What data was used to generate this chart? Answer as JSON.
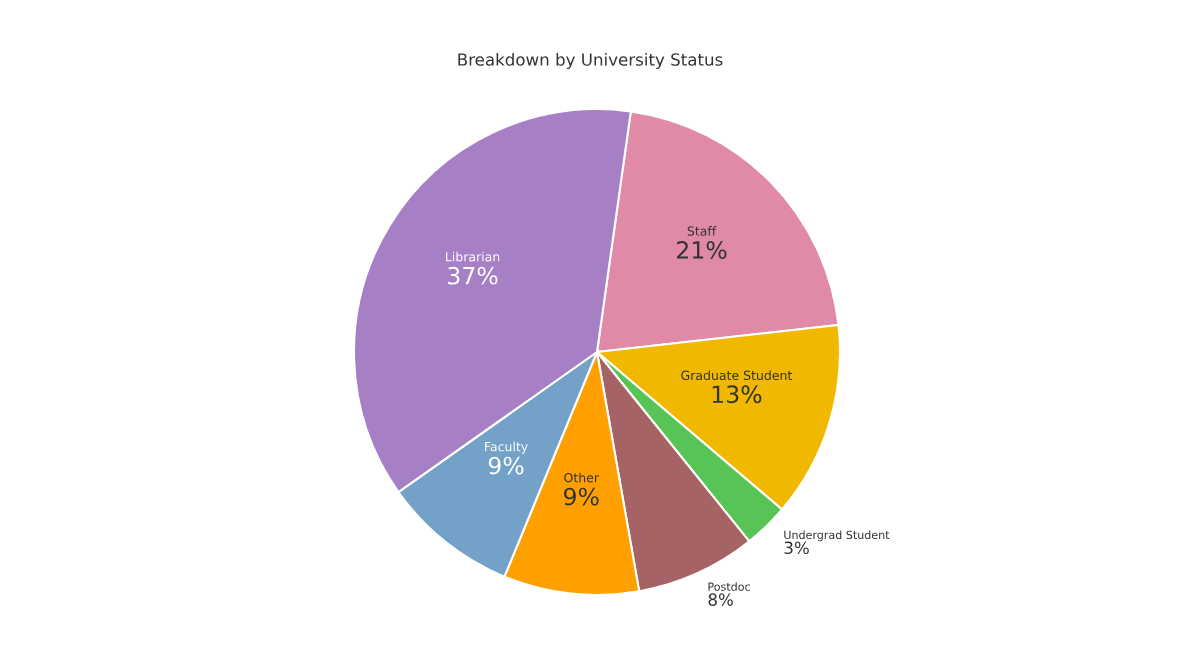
{
  "chart_data": {
    "type": "pie",
    "title": "Breakdown by University Status",
    "categories": [
      "Staff",
      "Graduate Student",
      "Undergrad Student",
      "Postdoc",
      "Other",
      "Faculty",
      "Librarian"
    ],
    "values": [
      21,
      13,
      3,
      8,
      9,
      9,
      37
    ],
    "value_labels": [
      "21%",
      "13%",
      "3%",
      "8%",
      "9%",
      "9%",
      "37%"
    ],
    "colors": [
      "#e18aa8",
      "#f0b900",
      "#58c455",
      "#a66365",
      "#ff9f00",
      "#73a1c8",
      "#a67fc5"
    ]
  }
}
